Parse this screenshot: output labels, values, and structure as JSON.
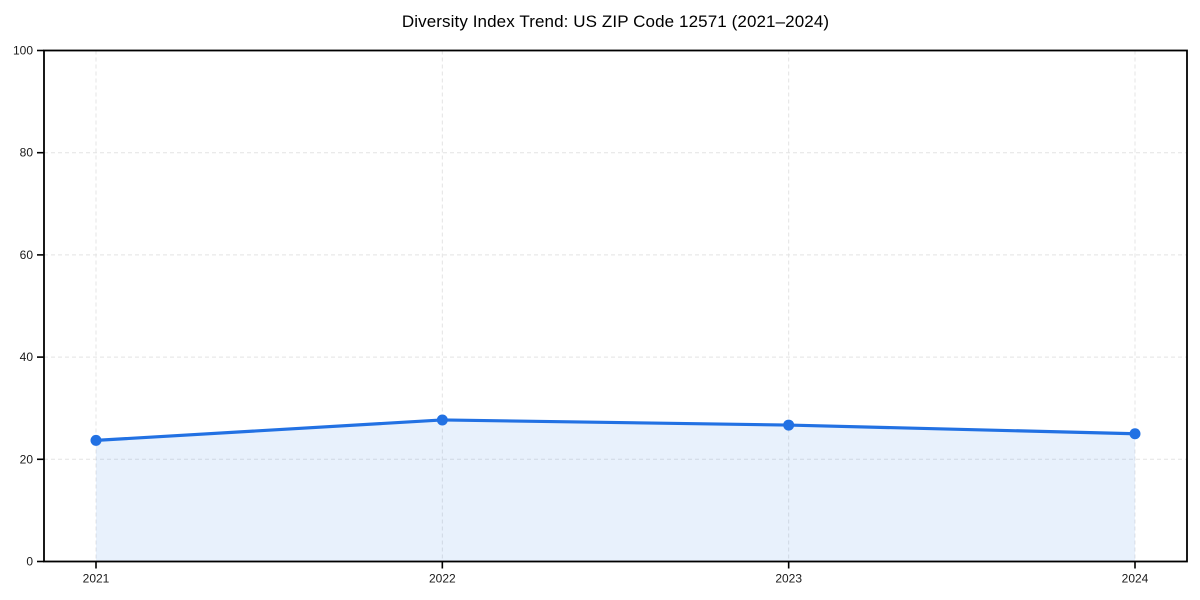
{
  "chart_data": {
    "type": "area",
    "title": "Diversity Index Trend: US ZIP Code 12571 (2021–2024)",
    "categories": [
      "2021",
      "2022",
      "2023",
      "2024"
    ],
    "series": [
      {
        "name": "Diversity Index",
        "values": [
          23.7,
          27.7,
          26.7,
          25.0
        ]
      }
    ],
    "xlabel": "",
    "ylabel": "",
    "ylim": [
      0,
      100
    ],
    "y_ticks": [
      0,
      20,
      40,
      60,
      80,
      100
    ],
    "grid": true,
    "grid_style": "dashed",
    "legend_position": "none",
    "colors": {
      "line": "#2271e3",
      "marker": "#2271e3",
      "fill": "rgba(34,113,227,0.10)",
      "grid": "#e4e4e4",
      "axis": "#000000",
      "tick_text": "#1a1a1a",
      "title_text": "#000000",
      "background": "#ffffff"
    }
  }
}
